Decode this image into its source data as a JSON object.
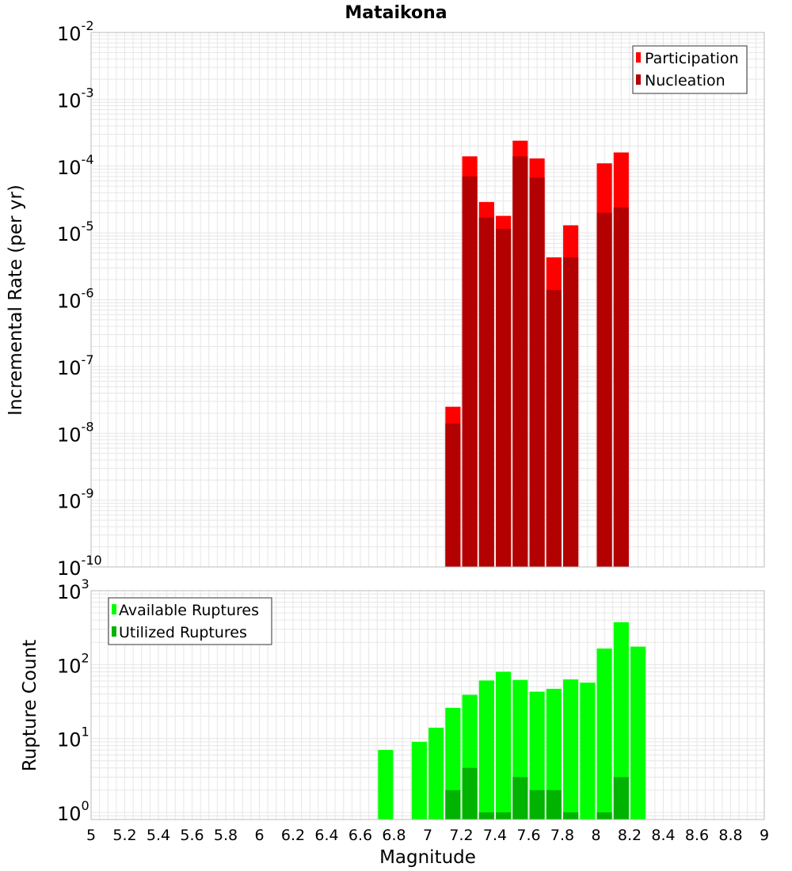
{
  "chart_data": [
    {
      "type": "bar",
      "title": "Mataikona",
      "xlabel": "",
      "ylabel": "Incremental Rate (per yr)",
      "yscale": "log",
      "ylim": [
        1e-10,
        0.01
      ],
      "xlim": [
        5,
        9
      ],
      "grid": true,
      "legend_position": "top-right",
      "bar_width": 0.09,
      "x": [
        7.15,
        7.25,
        7.35,
        7.45,
        7.55,
        7.65,
        7.75,
        7.85,
        8.05,
        8.15
      ],
      "series": [
        {
          "name": "Participation",
          "color": "#ff0000",
          "values": [
            2.5e-08,
            0.00014,
            2.9e-05,
            1.8e-05,
            0.00024,
            0.00013,
            4.3e-06,
            1.3e-05,
            0.00011,
            0.00016
          ]
        },
        {
          "name": "Nucleation",
          "color": "#b30000",
          "values": [
            1.4e-08,
            7e-05,
            1.7e-05,
            1.15e-05,
            0.00014,
            6.7e-05,
            1.4e-06,
            4.3e-06,
            2e-05,
            2.4e-05
          ]
        }
      ]
    },
    {
      "type": "bar",
      "title": "",
      "xlabel": "Magnitude",
      "ylabel": "Rupture Count",
      "yscale": "log",
      "ylim": [
        0.8,
        1000
      ],
      "xlim": [
        5,
        9
      ],
      "grid": true,
      "legend_position": "top-left",
      "bar_width": 0.09,
      "series": [
        {
          "name": "Available Ruptures",
          "color": "#00ff00",
          "x": [
            6.75,
            6.95,
            7.05,
            7.15,
            7.25,
            7.35,
            7.45,
            7.55,
            7.65,
            7.75,
            7.85,
            7.95,
            8.05,
            8.15,
            8.25
          ],
          "values": [
            7,
            9,
            14,
            26,
            39,
            61,
            80,
            62,
            43,
            47,
            63,
            57,
            165,
            375,
            175
          ]
        },
        {
          "name": "Utilized Ruptures",
          "color": "#00b300",
          "x": [
            7.15,
            7.25,
            7.35,
            7.45,
            7.55,
            7.65,
            7.75,
            7.85,
            8.05,
            8.15
          ],
          "values": [
            2,
            4,
            1,
            1,
            3,
            2,
            2,
            1,
            1,
            3
          ]
        }
      ]
    }
  ],
  "x_ticks": [
    "5",
    "5.2",
    "5.4",
    "5.6",
    "5.8",
    "6",
    "6.2",
    "6.4",
    "6.6",
    "6.8",
    "7",
    "7.2",
    "7.4",
    "7.6",
    "7.8",
    "8",
    "8.2",
    "8.4",
    "8.6",
    "8.8",
    "9"
  ],
  "top_y_ticks": [
    {
      "base": "10",
      "exp": "-2",
      "value": 0.01
    },
    {
      "base": "10",
      "exp": "-3",
      "value": 0.001
    },
    {
      "base": "10",
      "exp": "-4",
      "value": 0.0001
    },
    {
      "base": "10",
      "exp": "-5",
      "value": 1e-05
    },
    {
      "base": "10",
      "exp": "-6",
      "value": 1e-06
    },
    {
      "base": "10",
      "exp": "-7",
      "value": 1e-07
    },
    {
      "base": "10",
      "exp": "-8",
      "value": 1e-08
    },
    {
      "base": "10",
      "exp": "-9",
      "value": 1e-09
    },
    {
      "base": "10",
      "exp": "-10",
      "value": 1e-10
    }
  ],
  "bottom_y_ticks": [
    {
      "base": "10",
      "exp": "3",
      "value": 1000
    },
    {
      "base": "10",
      "exp": "2",
      "value": 100
    },
    {
      "base": "10",
      "exp": "1",
      "value": 10
    },
    {
      "base": "10",
      "exp": "0",
      "value": 1
    }
  ],
  "colors": {
    "participation": "#ff0000",
    "nucleation": "#b30000",
    "available": "#00ff00",
    "utilized": "#00b300",
    "grid": "#e6e6e6",
    "frame": "#bbbbbb"
  }
}
